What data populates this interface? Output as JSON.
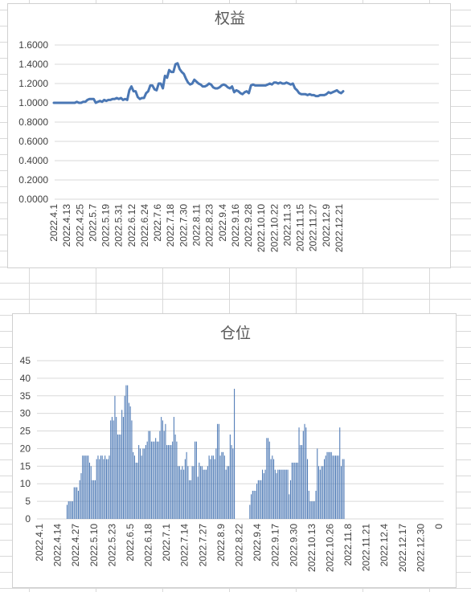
{
  "chart_data": [
    {
      "type": "line",
      "title": "权益",
      "ylim": [
        0,
        1.6
      ],
      "yticks": [
        "0.0000",
        "0.2000",
        "0.4000",
        "0.6000",
        "0.8000",
        "1.0000",
        "1.2000",
        "1.4000",
        "1.6000"
      ],
      "xtick_labels": [
        "2022.4.1",
        "2022.4.13",
        "2022.4.25",
        "2022.5.7",
        "2022.5.19",
        "2022.5.31",
        "2022.6.12",
        "2022.6.24",
        "2022.7.6",
        "2022.7.18",
        "2022.7.30",
        "2022.8.11",
        "2022.8.23",
        "2022.9.4",
        "2022.9.16",
        "2022.9.28",
        "2022.10.10",
        "2022.10.22",
        "2022.11.3",
        "2022.11.15",
        "2022.11.27",
        "2022.12.9",
        "2022.12.21"
      ],
      "grid": true,
      "color": "#4a77b4",
      "series": [
        {
          "values": [
            1.0,
            1.0,
            1.0,
            1.0,
            1.0,
            1.0,
            1.0,
            1.0,
            1.0,
            1.0,
            1.0,
            1.01,
            1.0,
            1.0,
            1.01,
            1.01,
            1.03,
            1.04,
            1.04,
            1.04,
            1.0,
            1.01,
            1.02,
            1.01,
            1.03,
            1.02,
            1.03,
            1.03,
            1.04,
            1.04,
            1.05,
            1.04,
            1.05,
            1.03,
            1.04,
            1.03,
            1.13,
            1.17,
            1.12,
            1.12,
            1.06,
            1.04,
            1.05,
            1.05,
            1.1,
            1.12,
            1.18,
            1.18,
            1.14,
            1.13,
            1.2,
            1.2,
            1.15,
            1.28,
            1.26,
            1.34,
            1.32,
            1.32,
            1.4,
            1.41,
            1.35,
            1.32,
            1.3,
            1.25,
            1.21,
            1.19,
            1.2,
            1.24,
            1.22,
            1.2,
            1.19,
            1.17,
            1.17,
            1.18,
            1.2,
            1.19,
            1.16,
            1.15,
            1.15,
            1.16,
            1.18,
            1.19,
            1.18,
            1.16,
            1.15,
            1.17,
            1.11,
            1.13,
            1.12,
            1.1,
            1.09,
            1.11,
            1.12,
            1.1,
            1.18,
            1.19,
            1.18,
            1.18,
            1.18,
            1.18,
            1.18,
            1.18,
            1.19,
            1.2,
            1.19,
            1.21,
            1.21,
            1.2,
            1.21,
            1.2,
            1.2,
            1.21,
            1.2,
            1.19,
            1.2,
            1.15,
            1.13,
            1.1,
            1.09,
            1.09,
            1.09,
            1.08,
            1.09,
            1.08,
            1.08,
            1.07,
            1.07,
            1.08,
            1.08,
            1.08,
            1.09,
            1.11,
            1.1,
            1.11,
            1.12,
            1.13,
            1.11,
            1.1,
            1.12
          ]
        }
      ]
    },
    {
      "type": "bar",
      "title": "仓位",
      "ylim": [
        0,
        45
      ],
      "yticks": [
        "0",
        "5",
        "10",
        "15",
        "20",
        "25",
        "30",
        "35",
        "40",
        "45"
      ],
      "xtick_labels": [
        "2022.4.1",
        "2022.4.14",
        "2022.4.27",
        "2022.5.10",
        "2022.5.23",
        "2022.6.5",
        "2022.6.18",
        "2022.7.1",
        "2022.7.14",
        "2022.7.27",
        "2022.8.9",
        "2022.8.22",
        "2022.9.4",
        "2022.9.17",
        "2022.9.30",
        "2022.10.13",
        "2022.10.26",
        "2022.11.8",
        "2022.11.21",
        "2022.12.4",
        "2022.12.17",
        "2022.12.30",
        "0"
      ],
      "grid": true,
      "color": "#4a77b4",
      "series": [
        {
          "values": [
            0,
            0,
            0,
            0,
            0,
            0,
            0,
            0,
            0,
            0,
            4,
            5,
            5,
            5,
            5,
            9,
            9,
            9,
            8,
            11,
            13,
            18,
            18,
            18,
            18,
            18,
            16,
            15,
            11,
            11,
            11,
            17,
            18,
            17,
            18,
            18,
            17,
            18,
            17,
            17,
            18,
            28,
            29,
            28,
            35,
            29,
            24,
            24,
            24,
            31,
            29,
            35,
            38,
            38,
            33,
            32,
            28,
            19,
            18,
            16,
            16,
            21,
            20,
            18,
            20,
            20,
            21,
            22,
            25,
            25,
            22,
            22,
            22,
            23,
            22,
            22,
            25,
            29,
            28,
            25,
            27,
            21,
            21,
            21,
            21,
            22,
            29,
            24,
            22,
            15,
            15,
            14,
            15,
            14,
            17,
            19,
            15,
            11,
            11,
            15,
            15,
            22,
            22,
            12,
            16,
            15,
            15,
            14,
            14,
            14,
            15,
            18,
            17,
            18,
            18,
            17,
            20,
            27,
            27,
            18,
            19,
            19,
            18,
            14,
            15,
            15,
            24,
            21,
            20,
            37,
            0,
            0,
            0,
            0,
            0,
            0,
            0,
            0,
            0,
            0,
            4,
            7,
            8,
            8,
            8,
            10,
            11,
            11,
            11,
            14,
            13,
            14,
            23,
            23,
            22,
            17,
            18,
            17,
            14,
            13,
            14,
            14,
            14,
            14,
            14,
            14,
            14,
            14,
            7,
            11,
            16,
            16,
            16,
            16,
            16,
            26,
            21,
            21,
            25,
            27,
            26,
            17,
            8,
            5,
            5,
            5,
            5,
            8,
            20,
            15,
            14,
            15,
            15,
            17,
            18,
            19,
            19,
            19,
            19,
            18,
            18,
            18,
            18,
            18,
            26,
            15,
            17,
            17
          ]
        }
      ]
    }
  ]
}
